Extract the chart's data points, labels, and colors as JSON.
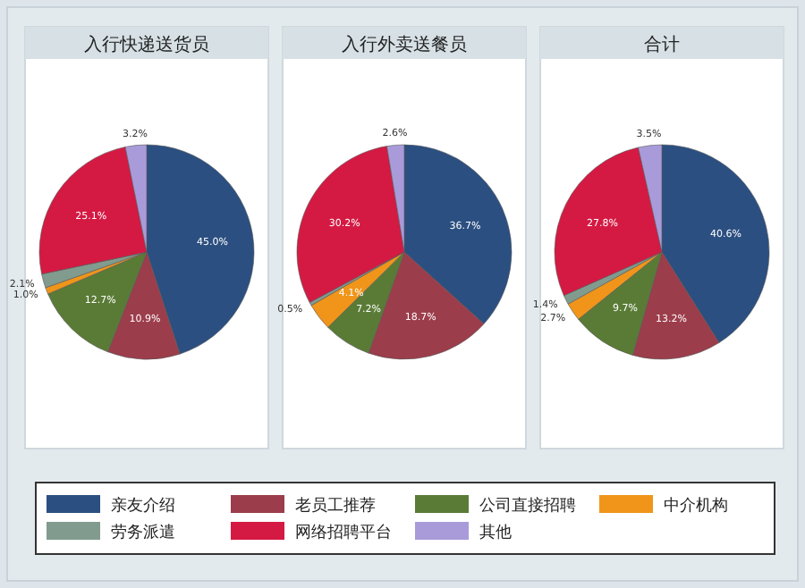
{
  "chart_data": [
    {
      "type": "pie",
      "title": "入行快递送货员",
      "legend": "bottom",
      "categories": [
        "亲友介绍",
        "老员工推荐",
        "公司直接招聘",
        "中介机构",
        "劳务派遣",
        "网络招聘平台",
        "其他"
      ],
      "colors": [
        "#2b4f80",
        "#9c3d4b",
        "#5a7b36",
        "#f0951a",
        "#819c8e",
        "#d41a43",
        "#a99bd9"
      ],
      "values": [
        45.0,
        10.9,
        12.7,
        1.0,
        2.1,
        25.1,
        3.2
      ],
      "value_labels": [
        "45.0%",
        "10.9%",
        "12.7%",
        "1.0%",
        "2.1%",
        "25.1%",
        "3.2%"
      ]
    },
    {
      "type": "pie",
      "title": "入行外卖送餐员",
      "colors": [
        "#2b4f80",
        "#9c3d4b",
        "#5a7b36",
        "#f0951a",
        "#819c8e",
        "#d41a43",
        "#a99bd9"
      ],
      "values": [
        36.7,
        18.7,
        7.2,
        4.1,
        0.5,
        30.2,
        2.6
      ],
      "value_labels": [
        "36.7%",
        "18.7%",
        "7.2%",
        "4.1%",
        "0.5%",
        "30.2%",
        "2.6%"
      ]
    },
    {
      "type": "pie",
      "title": "合计",
      "colors": [
        "#2b4f80",
        "#9c3d4b",
        "#5a7b36",
        "#f0951a",
        "#819c8e",
        "#d41a43",
        "#a99bd9"
      ],
      "values": [
        40.6,
        13.2,
        9.7,
        2.7,
        1.4,
        27.8,
        3.5
      ],
      "value_labels": [
        "40.6%",
        "13.2%",
        "9.7%",
        "2.7%",
        "1.4%",
        "27.8%",
        "3.5%"
      ]
    }
  ]
}
